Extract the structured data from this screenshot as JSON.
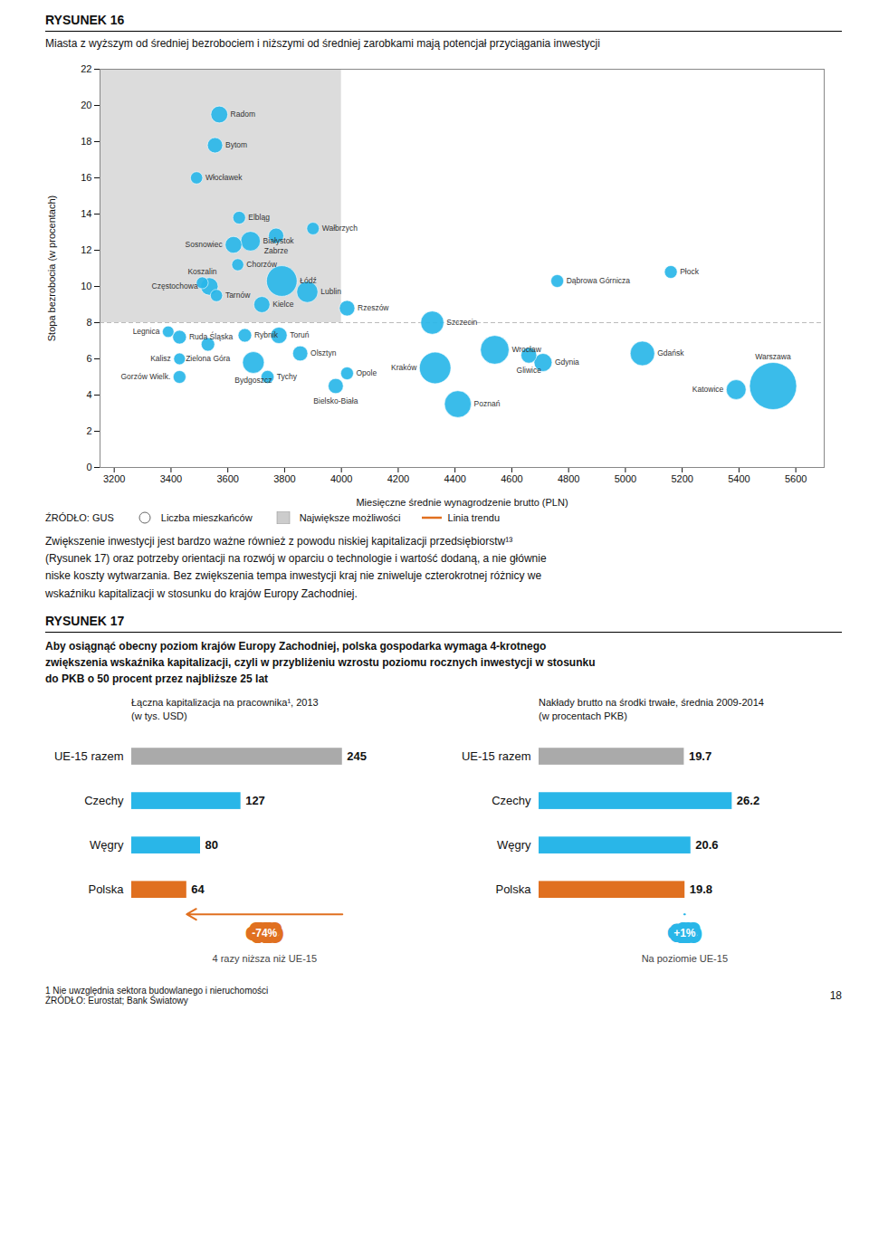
{
  "chart_data": [
    {
      "type": "scatter",
      "title": "RYSUNEK 16",
      "subtitle": "Miasta z wyższym od średniej bezrobociem i niższymi od średniej zarobkami mają potencjał przyciągania inwestycji",
      "labels": [
        "Radom",
        "Bytom",
        "Włocławek",
        "Elbląg",
        "Wałbrzych",
        "Białystok",
        "Zabrze",
        "Sosnowiec",
        "Chorzów",
        "Koszalin",
        "Częstochowa",
        "Tarnów",
        "Łódź",
        "Lublin",
        "Kielce",
        "Rzeszów",
        "Legnica",
        "Ruda Śląska",
        "Kalisz",
        "Zielona Góra",
        "Rybnik",
        "Gorzów Wielk.",
        "Bydgoszcz",
        "Toruń",
        "Tychy",
        "Olsztyn",
        "Opole",
        "Bielsko-Biała",
        "Szczecin",
        "Kraków",
        "Wrocław",
        "Poznań",
        "Dąbrowa Górnicza",
        "Gliwice",
        "Gdynia",
        "Gdańsk",
        "Płock",
        "Katowice",
        "Warszawa"
      ],
      "x": [
        3570,
        3555,
        3490,
        3640,
        3900,
        3680,
        3770,
        3620,
        3635,
        3510,
        3535,
        3560,
        3790,
        3880,
        3720,
        4020,
        3390,
        3430,
        3430,
        3530,
        3660,
        3430,
        3690,
        3780,
        3740,
        3855,
        4020,
        3980,
        4320,
        4330,
        4540,
        4410,
        4760,
        4660,
        4710,
        5060,
        5160,
        5390,
        5520
      ],
      "y": [
        19.5,
        17.8,
        16.0,
        13.8,
        13.2,
        12.5,
        12.8,
        12.3,
        11.2,
        10.2,
        10.0,
        9.5,
        10.3,
        9.7,
        9.0,
        8.8,
        7.5,
        7.2,
        6.0,
        6.8,
        7.3,
        5.0,
        5.8,
        7.3,
        5.0,
        6.3,
        5.2,
        4.5,
        8.0,
        5.5,
        6.5,
        3.5,
        10.3,
        6.2,
        5.8,
        6.3,
        10.8,
        4.3,
        4.5
      ],
      "sizes": [
        220000,
        180000,
        115000,
        125000,
        120000,
        295000,
        180000,
        215000,
        112000,
        109000,
        235000,
        115000,
        720000,
        345000,
        200000,
        185000,
        102000,
        145000,
        105000,
        140000,
        140000,
        125000,
        360000,
        205000,
        130000,
        175000,
        125000,
        175000,
        410000,
        760000,
        630000,
        550000,
        125000,
        190000,
        250000,
        460000,
        125000,
        300000,
        1700000
      ],
      "color": "#29B6E8",
      "xlabel": "Miesięczne średnie wynagrodzenie brutto (PLN)",
      "ylabel": "Stopa bezrobocia (w procentach)",
      "xlim": [
        3150,
        5700
      ],
      "ylim": [
        0,
        22
      ],
      "xticks": [
        3200,
        3400,
        3600,
        3800,
        4000,
        4200,
        4400,
        4600,
        4800,
        5000,
        5200,
        5400,
        5600
      ],
      "yticks": [
        0,
        2,
        4,
        6,
        8,
        10,
        12,
        14,
        16,
        18,
        20,
        22
      ],
      "grid": false,
      "highlight": {
        "x_max": 4000,
        "y_min": 8.0,
        "color": "#DCDCDC"
      },
      "reference_line": {
        "y": 8.0,
        "line_style": "dashed"
      },
      "source": "ŹRÓDŁO: GUS",
      "legend_items": [
        {
          "name": "Liczba mieszkańców",
          "marker": "circle"
        },
        {
          "name": "Największe możliwości",
          "marker": "square",
          "color": "#CCCCCC"
        },
        {
          "name": "Linia trendu",
          "line_style": "solid",
          "color": "#E07020"
        }
      ]
    },
    {
      "type": "bar",
      "orientation": "horizontal",
      "title": "Łączna kapitalizacja na pracownika¹, 2013",
      "subtitle": "(w tys. USD)",
      "categories": [
        "UE-15 razem",
        "Czechy",
        "Węgry",
        "Polska"
      ],
      "values": [
        245,
        127,
        80,
        64
      ],
      "colors": [
        "#AAAAAA",
        "#29B6E8",
        "#29B6E8",
        "#E07020"
      ],
      "xlim": [
        0,
        300
      ],
      "tick_labels": "y",
      "data_labels": true,
      "annotations": [
        {
          "text": "-74%",
          "color": "#E07020"
        },
        {
          "text": "4 razy niższa niż UE-15"
        }
      ]
    },
    {
      "type": "bar",
      "orientation": "horizontal",
      "title": "Nakłady brutto na środki trwałe, średnia 2009-2014",
      "subtitle": "(w procentach PKB)",
      "categories": [
        "UE-15 razem",
        "Czechy",
        "Węgry",
        "Polska"
      ],
      "values": [
        19.7,
        26.2,
        20.6,
        19.8
      ],
      "colors": [
        "#AAAAAA",
        "#29B6E8",
        "#29B6E8",
        "#E07020"
      ],
      "xlim": [
        0,
        35
      ],
      "tick_labels": "y",
      "data_labels": true,
      "annotations": [
        {
          "text": "+1%",
          "color": "#29B6E8"
        },
        {
          "text": "Na poziomie UE-15"
        }
      ]
    }
  ],
  "page": {
    "paragraph": "Zwiększenie inwestycji jest bardzo ważne również z powodu niskiej kapitalizacji przedsiębiorstw¹³\n(Rysunek 17) oraz potrzeby orientacji na rozwój w oparciu o technologie i wartość dodaną, a nie głównie\nniske koszty wytwarzania. Bez zwiększenia tempa inwestycji kraj nie zniweluje czterokrotnej różnicy we\nwskaźniku kapitalizacji w stosunku do krajów Europy Zachodniej.",
    "figure_title": "RYSUNEK 17",
    "figure_subtitle": "Aby osiągnąć obecny poziom krajów Europy Zachodniej, polska gospodarka wymaga 4-krotnego\nzwiększenia wskaźnika kapitalizacji, czyli w przybliżeniu wzrostu poziomu rocznych inwestycji w stosunku\ndo PKB o 50 procent przez najbliższe 25 lat",
    "footnotes": [
      "1 Nie uwzględnia sektora budowlanego i nieruchomości",
      "ŹRÓDŁO: Eurostat; Bank Światowy"
    ],
    "page_number": "18"
  }
}
